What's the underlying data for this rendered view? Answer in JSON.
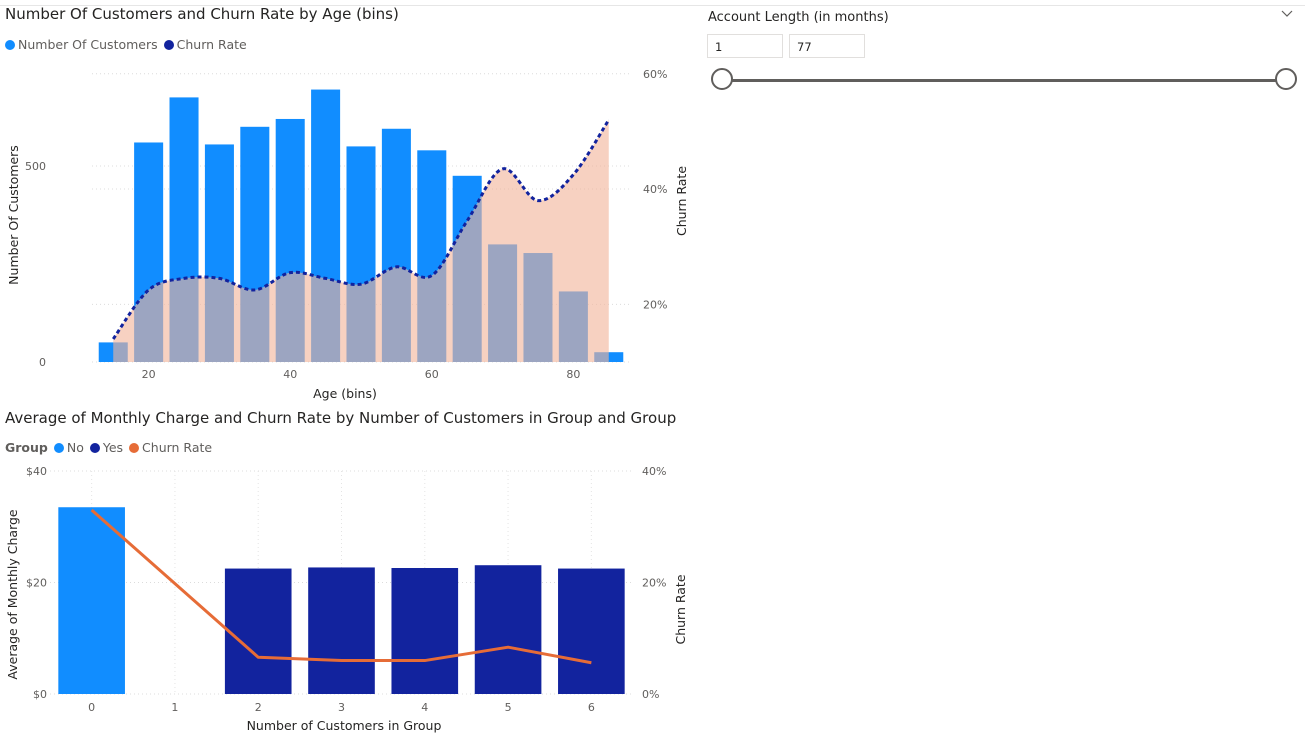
{
  "chart_data": [
    {
      "type": "bar",
      "title": "Number Of Customers and Churn Rate by Age (bins)",
      "xlabel": "Age (bins)",
      "ylabel": "Number Of Customers",
      "y2label": "Churn Rate",
      "legend": {
        "position": "top-left",
        "items": [
          {
            "name": "Number Of Customers",
            "color": "#118dff"
          },
          {
            "name": "Churn Rate",
            "color": "#12239e"
          }
        ]
      },
      "x_ticks": [
        20,
        40,
        60,
        80
      ],
      "x_range": [
        12,
        88
      ],
      "y_ticks": [
        {
          "v": 0,
          "label": "0"
        },
        {
          "v": 500,
          "label": "500"
        }
      ],
      "y_range": [
        0,
        750
      ],
      "y2_ticks": [
        {
          "v": 0.2,
          "label": "20%"
        },
        {
          "v": 0.4,
          "label": "40%"
        },
        {
          "v": 0.6,
          "label": "60%"
        }
      ],
      "y2_range": [
        0.1,
        0.61
      ],
      "grid": true,
      "bar_color": "#118dff",
      "area_color": "#f2b49b",
      "line_color": "#12239e",
      "x": [
        15,
        20,
        25,
        30,
        35,
        40,
        45,
        50,
        55,
        60,
        65,
        70,
        75,
        80,
        85
      ],
      "series": [
        {
          "name": "Number Of Customers",
          "values": [
            50,
            560,
            675,
            555,
            600,
            620,
            695,
            550,
            595,
            540,
            475,
            300,
            278,
            180,
            25
          ]
        },
        {
          "name": "Churn Rate",
          "values": [
            0.14,
            0.225,
            0.245,
            0.245,
            0.225,
            0.255,
            0.245,
            0.235,
            0.265,
            0.25,
            0.345,
            0.435,
            0.38,
            0.425,
            0.52
          ]
        }
      ]
    },
    {
      "type": "bar",
      "title": "Average of Monthly Charge and Churn Rate by Number of Customers in Group and Group",
      "xlabel": "Number of Customers in Group",
      "ylabel": "Average of Monthly Charge",
      "y2label": "Churn Rate",
      "legend": {
        "position": "top-left",
        "title": "Group",
        "items": [
          {
            "name": "No",
            "color": "#118dff"
          },
          {
            "name": "Yes",
            "color": "#12239e"
          },
          {
            "name": "Churn Rate",
            "color": "#e66c37"
          }
        ]
      },
      "categories": [
        "0",
        "1",
        "2",
        "3",
        "4",
        "5",
        "6"
      ],
      "y_ticks": [
        {
          "v": 0,
          "label": "$0"
        },
        {
          "v": 20,
          "label": "$20"
        },
        {
          "v": 40,
          "label": "$40"
        }
      ],
      "y_range": [
        0,
        40
      ],
      "y2_ticks": [
        {
          "v": 0,
          "label": "0%"
        },
        {
          "v": 0.2,
          "label": "20%"
        },
        {
          "v": 0.4,
          "label": "40%"
        }
      ],
      "y2_range": [
        0,
        0.4
      ],
      "grid": true,
      "series": [
        {
          "name": "No",
          "color": "#118dff",
          "values": [
            33.5,
            null,
            null,
            null,
            null,
            null,
            null
          ]
        },
        {
          "name": "Yes",
          "color": "#12239e",
          "values": [
            null,
            null,
            22.5,
            22.7,
            22.6,
            23.1,
            22.5
          ]
        },
        {
          "name": "Churn Rate",
          "color": "#e66c37",
          "values": [
            0.33,
            null,
            0.066,
            0.06,
            0.06,
            0.084,
            0.056
          ]
        }
      ]
    }
  ],
  "slicer": {
    "title": "Account Length (in months)",
    "chevron_icon": "chevron-down-icon",
    "min_value": "1",
    "max_value": "77"
  }
}
